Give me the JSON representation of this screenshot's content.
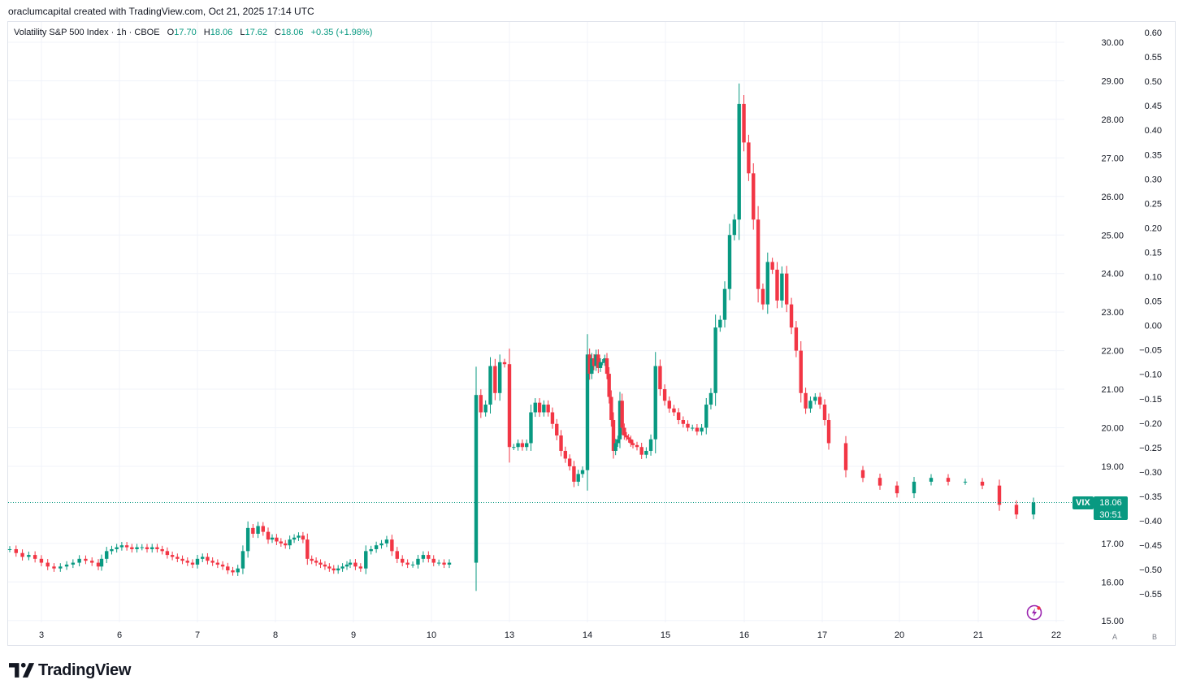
{
  "attribution": "oraclumcapital created with TradingView.com, Oct 21, 2025 17:14 UTC",
  "legend": {
    "symbol_desc": "Volatility S&P 500 Index · 1h · CBOE",
    "open_label": "O",
    "open": "17.70",
    "high_label": "H",
    "high": "18.06",
    "low_label": "L",
    "low": "17.62",
    "close_label": "C",
    "close": "18.06",
    "change": "+0.35 (+1.98%)"
  },
  "last_price": {
    "symbol": "VIX",
    "price": "18.06",
    "countdown": "30:51"
  },
  "scale_buttons": {
    "auto": "A",
    "log": "B"
  },
  "brand": {
    "name": "TradingView"
  },
  "colors": {
    "up": "#089981",
    "down": "#f23645",
    "grid": "#f0f3fa",
    "text": "#131722"
  },
  "chart_data": {
    "type": "candlestick",
    "symbol": "VIX",
    "timeframe": "1h",
    "x_tick_labels": [
      "3",
      "6",
      "7",
      "8",
      "9",
      "10",
      "13",
      "14",
      "15",
      "16",
      "17",
      "20",
      "21",
      "22"
    ],
    "y_left_ticks": [
      "30.00",
      "29.00",
      "28.00",
      "27.00",
      "26.00",
      "25.00",
      "24.00",
      "23.00",
      "22.00",
      "21.00",
      "20.00",
      "19.00",
      "17.00",
      "16.00",
      "15.00"
    ],
    "y_right_ticks": [
      "0.60",
      "0.55",
      "0.50",
      "0.45",
      "0.40",
      "0.35",
      "0.30",
      "0.25",
      "0.20",
      "0.15",
      "0.10",
      "0.05",
      "0.00",
      "−0.05",
      "−0.10",
      "−0.15",
      "−0.20",
      "−0.25",
      "−0.30",
      "−0.35",
      "−0.40",
      "−0.45",
      "−0.50",
      "−0.55"
    ],
    "ylim": [
      15,
      30
    ],
    "grid": true,
    "segments": [
      {
        "day": "3",
        "closes": [
          16.85,
          16.75,
          16.65,
          16.7,
          16.6,
          16.5,
          16.4,
          16.35,
          16.4,
          16.45,
          16.5,
          16.6,
          16.55,
          16.5,
          16.4
        ]
      },
      {
        "day": "6",
        "closes": [
          16.6,
          16.8,
          16.85,
          16.9,
          16.95,
          16.9,
          16.85,
          16.9,
          16.9,
          16.85,
          16.9,
          16.85,
          16.8,
          16.7,
          16.65,
          16.6,
          16.55,
          16.5,
          16.45
        ]
      },
      {
        "day": "7",
        "closes": [
          16.6,
          16.65,
          16.55,
          16.5,
          16.45,
          16.4,
          16.3,
          16.25,
          16.35,
          16.8,
          17.4,
          17.25,
          17.45,
          17.3,
          17.1
        ]
      },
      {
        "day": "8",
        "closes": [
          17.15,
          17.05,
          17.0,
          16.95,
          17.1,
          17.15,
          17.2,
          17.1,
          16.6,
          16.55,
          16.5,
          16.45,
          16.4,
          16.35,
          16.3,
          16.35,
          16.4,
          16.45
        ]
      },
      {
        "day": "9",
        "closes": [
          16.5,
          16.4,
          16.35,
          16.8,
          16.85,
          16.95,
          17.0,
          17.1,
          16.8,
          16.6,
          16.5,
          16.45,
          16.45,
          16.6,
          16.7,
          16.6,
          16.5,
          16.5,
          16.45,
          16.5
        ]
      },
      {
        "day": "10",
        "closes": [
          20.85,
          20.4,
          20.6,
          21.6,
          20.9,
          21.7,
          21.65
        ]
      },
      {
        "day": "13",
        "closes": [
          19.5,
          19.5,
          19.6,
          19.5,
          19.6,
          20.4,
          20.65,
          20.4,
          20.6,
          20.4,
          20.1,
          19.8,
          19.4,
          19.2,
          19.0,
          18.6,
          18.8,
          18.9
        ]
      },
      {
        "day": "14",
        "closes": [
          21.9,
          21.4,
          21.8,
          21.6,
          21.9,
          21.55,
          21.7,
          21.7,
          21.8,
          21.4,
          20.8,
          20.2,
          19.4,
          19.6,
          19.7,
          20.7,
          20.0,
          19.8,
          19.75,
          19.7,
          19.6,
          19.55
        ]
      },
      {
        "day": "15",
        "closes": [
          19.5,
          19.3,
          19.4,
          19.7,
          21.6,
          21.0,
          20.7,
          20.5,
          20.4,
          20.2,
          20.1,
          20.0,
          20.0,
          19.9,
          20.0,
          20.6,
          20.9,
          22.6,
          22.8,
          23.6
        ]
      },
      {
        "day": "16",
        "closes": [
          25.0,
          25.4,
          28.4,
          27.4,
          26.6,
          25.4,
          23.6,
          23.2,
          24.3,
          24.1,
          23.3,
          24.0,
          23.2,
          22.6,
          22.0,
          20.9,
          20.5,
          20.7,
          20.8,
          20.6,
          20.2
        ]
      },
      {
        "day": "20",
        "closes": [
          19.6,
          18.9,
          18.7,
          18.5,
          18.3,
          18.6,
          18.7,
          18.6,
          18.6,
          18.5,
          18.0,
          17.75,
          18.06
        ]
      }
    ]
  }
}
